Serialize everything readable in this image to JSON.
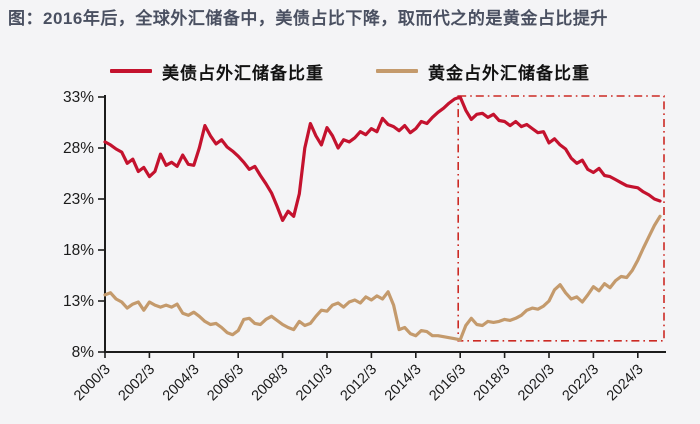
{
  "title": "图：2016年后，全球外汇储备中，美债占比下降，取而代之的是黄金占比提升",
  "legend": [
    {
      "label": "美债占外汇储备比重",
      "color": "#c4122e"
    },
    {
      "label": "黄金占外汇储备比重",
      "color": "#c49a6c"
    }
  ],
  "colors": {
    "background": "#f4f4f6",
    "axis": "#1c1c1c",
    "tick_text": "#1b1b1b",
    "title_text": "#4a5061",
    "highlight_box": "#cc2a24",
    "series_red": "#c4122e",
    "series_tan": "#c49a6c"
  },
  "chart_data": {
    "type": "line",
    "title": "",
    "xlabel": "",
    "ylabel": "",
    "ylim": [
      8,
      33
    ],
    "grid": false,
    "legend_position": "top-center",
    "y_ticks": [
      {
        "label": "33%",
        "value": 33
      },
      {
        "label": "28%",
        "value": 28
      },
      {
        "label": "23%",
        "value": 23
      },
      {
        "label": "18%",
        "value": 18
      },
      {
        "label": "13%",
        "value": 13
      },
      {
        "label": "8%",
        "value": 8
      }
    ],
    "x_tick_labels": [
      "2000/3",
      "2002/3",
      "2004/3",
      "2006/3",
      "2008/3",
      "2010/3",
      "2012/3",
      "2014/3",
      "2016/3",
      "2018/3",
      "2020/3",
      "2022/3",
      "2024/3"
    ],
    "x_start_label": "2000/3",
    "x_step_months": 3,
    "x_end_label": "2025/3",
    "highlight_box": {
      "from_label": "2016/3",
      "from_index": 64,
      "to_end": true,
      "y_bottom": 9.1,
      "y_top": 33,
      "style": "dash-dot",
      "color": "#cc2a24"
    },
    "series": [
      {
        "name": "美债占外汇储备比重",
        "color": "#c4122e",
        "values": [
          28.6,
          28.3,
          27.9,
          27.6,
          26.5,
          26.9,
          25.7,
          26.1,
          25.2,
          25.7,
          27.4,
          26.3,
          26.6,
          26.2,
          27.3,
          26.4,
          26.3,
          28.0,
          30.2,
          29.2,
          28.4,
          28.8,
          28.1,
          27.7,
          27.2,
          26.6,
          25.9,
          26.2,
          25.3,
          24.5,
          23.6,
          22.3,
          20.9,
          21.8,
          21.3,
          23.5,
          28.0,
          30.4,
          29.2,
          28.3,
          30.0,
          29.2,
          28.0,
          28.8,
          28.6,
          29.0,
          29.6,
          29.3,
          29.9,
          29.6,
          30.9,
          30.3,
          30.1,
          29.7,
          30.2,
          29.5,
          29.9,
          30.6,
          30.4,
          31.0,
          31.5,
          31.9,
          32.4,
          32.8,
          33.0,
          31.7,
          30.8,
          31.3,
          31.4,
          31.0,
          31.3,
          30.7,
          30.6,
          30.2,
          30.6,
          30.1,
          30.3,
          29.9,
          29.5,
          29.6,
          28.5,
          28.9,
          28.3,
          27.9,
          27.0,
          26.5,
          26.8,
          25.9,
          25.6,
          26.0,
          25.3,
          25.2,
          24.9,
          24.6,
          24.3,
          24.2,
          24.1,
          23.7,
          23.4,
          23.0,
          22.8
        ]
      },
      {
        "name": "黄金占外汇储备比重",
        "color": "#c49a6c",
        "values": [
          13.6,
          13.8,
          13.2,
          12.9,
          12.3,
          12.7,
          12.9,
          12.1,
          12.9,
          12.6,
          12.4,
          12.6,
          12.4,
          12.7,
          11.8,
          11.6,
          11.9,
          11.5,
          11.0,
          10.7,
          10.8,
          10.4,
          9.9,
          9.7,
          10.1,
          11.2,
          11.3,
          10.8,
          10.7,
          11.2,
          11.5,
          11.1,
          10.7,
          10.4,
          10.2,
          11.0,
          10.6,
          10.8,
          11.5,
          12.1,
          12.0,
          12.6,
          12.8,
          12.4,
          12.9,
          13.1,
          12.8,
          13.4,
          13.1,
          13.5,
          13.2,
          13.9,
          12.6,
          10.2,
          10.4,
          9.8,
          9.6,
          10.1,
          10.0,
          9.6,
          9.6,
          9.5,
          9.4,
          9.3,
          9.2,
          10.6,
          11.3,
          10.7,
          10.6,
          11.0,
          10.9,
          11.0,
          11.2,
          11.1,
          11.3,
          11.6,
          12.1,
          12.3,
          12.2,
          12.5,
          13.0,
          14.1,
          14.6,
          13.8,
          13.2,
          13.4,
          12.9,
          13.6,
          14.4,
          14.0,
          14.7,
          14.3,
          15.0,
          15.4,
          15.3,
          16.0,
          17.0,
          18.2,
          19.3,
          20.4,
          21.3
        ]
      }
    ]
  }
}
